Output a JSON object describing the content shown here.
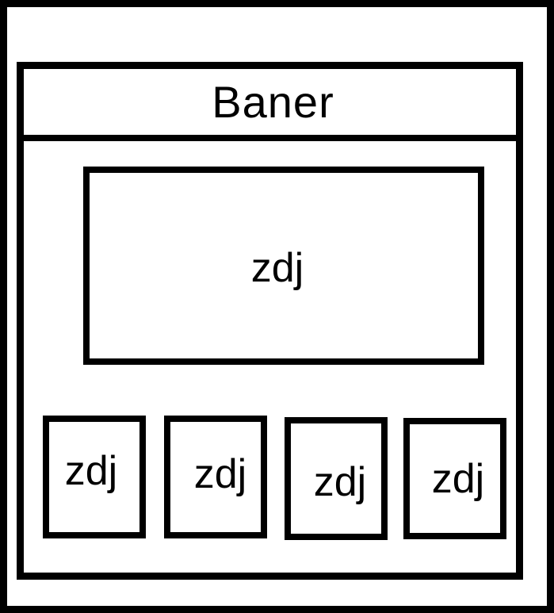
{
  "banner": {
    "label": "Baner"
  },
  "main_image": {
    "label": "zdj"
  },
  "thumbnails": [
    {
      "label": "zdj"
    },
    {
      "label": "zdj"
    },
    {
      "label": "zdj"
    },
    {
      "label": "zdj"
    }
  ]
}
